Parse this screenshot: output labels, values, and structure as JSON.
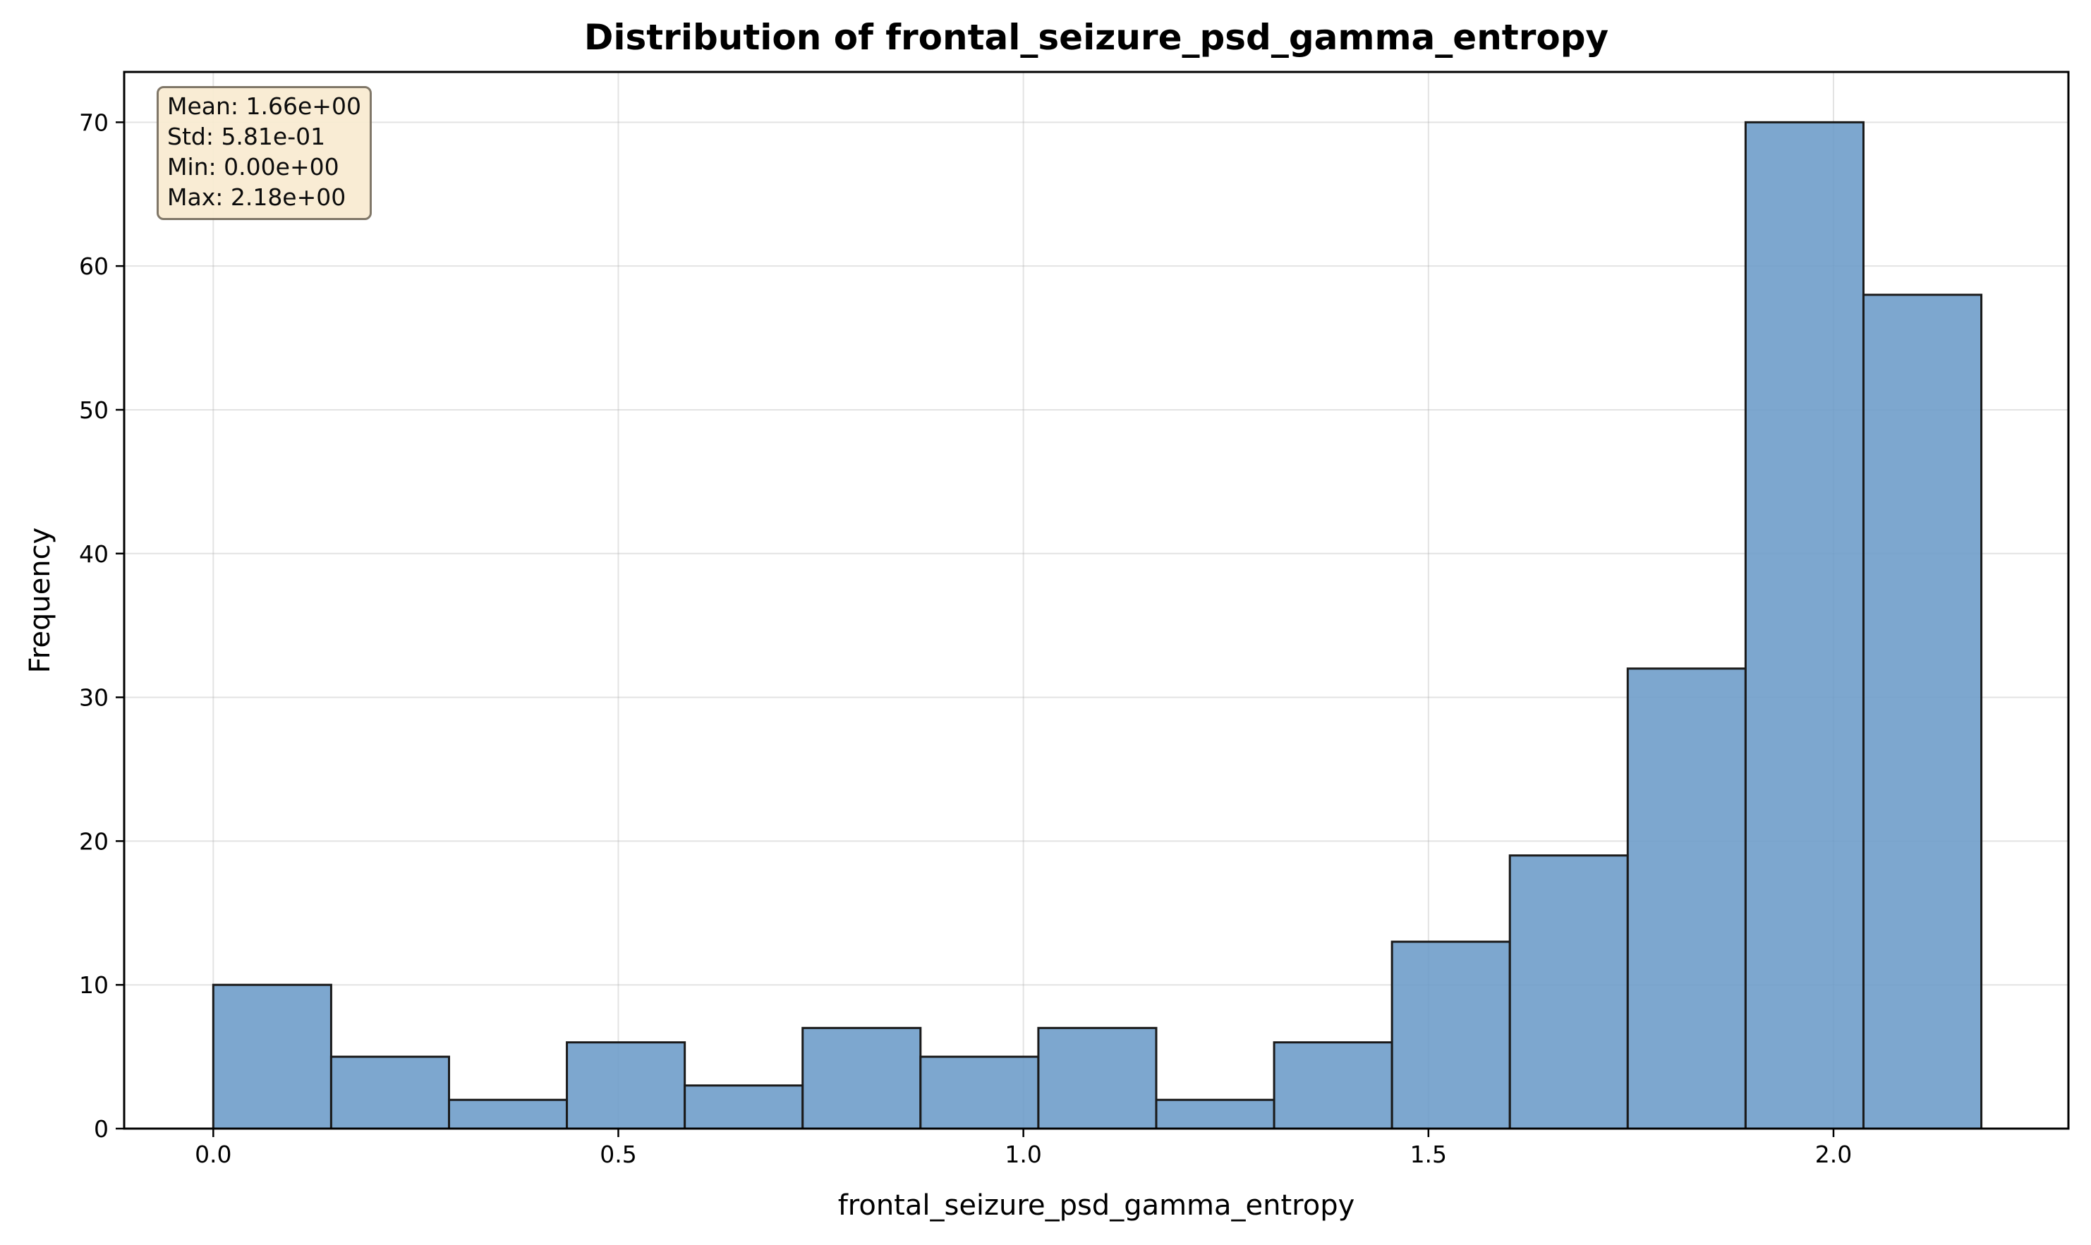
{
  "chart_data": {
    "type": "bar",
    "title": "Distribution of frontal_seizure_psd_gamma_entropy",
    "xlabel": "frontal_seizure_psd_gamma_entropy",
    "ylabel": "Frequency",
    "bin_edges": [
      0.0,
      0.1455,
      0.291,
      0.4365,
      0.582,
      0.7275,
      0.873,
      1.0185,
      1.164,
      1.3095,
      1.455,
      1.6005,
      1.746,
      1.8915,
      2.037,
      2.1825
    ],
    "values": [
      10,
      5,
      2,
      6,
      3,
      7,
      5,
      7,
      2,
      6,
      13,
      19,
      32,
      70,
      58
    ],
    "xlim": [
      -0.11,
      2.29
    ],
    "ylim": [
      0,
      73.5
    ],
    "xticks": [
      0.0,
      0.5,
      1.0,
      1.5,
      2.0
    ],
    "xtick_labels": [
      "0.0",
      "0.5",
      "1.0",
      "1.5",
      "2.0"
    ],
    "yticks": [
      0,
      10,
      20,
      30,
      40,
      50,
      60,
      70
    ],
    "ytick_labels": [
      "0",
      "10",
      "20",
      "30",
      "40",
      "50",
      "60",
      "70"
    ],
    "grid": true,
    "bar_color": "#6b9bc8",
    "edge_color": "#1a1a1a",
    "stats": {
      "mean": "Mean: 1.66e+00",
      "std": "Std: 5.81e-01",
      "min": "Min: 0.00e+00",
      "max": "Max: 2.18e+00"
    }
  }
}
